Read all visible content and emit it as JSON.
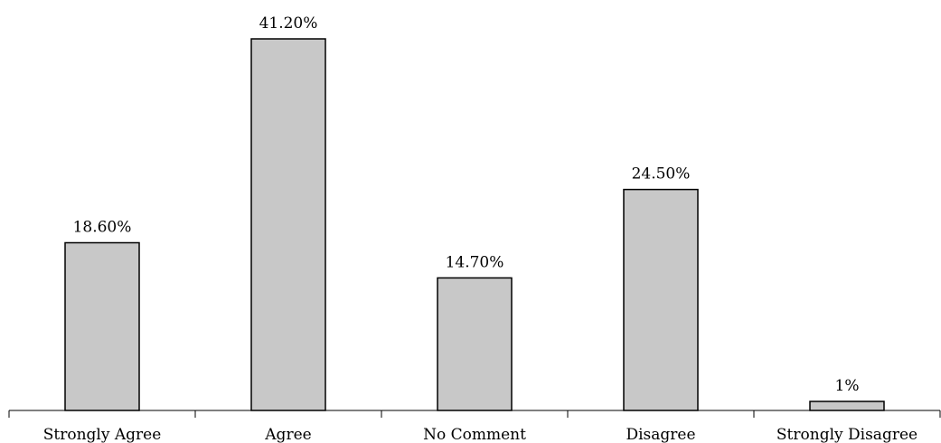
{
  "chart_data": {
    "type": "bar",
    "categories": [
      "Strongly Agree",
      "Agree",
      "No Comment",
      "Disagree",
      "Strongly Disagree"
    ],
    "values": [
      18.6,
      41.2,
      14.7,
      24.5,
      1
    ],
    "data_labels": [
      "18.60%",
      "41.20%",
      "14.70%",
      "24.50%",
      "1%"
    ],
    "ylim": [
      0,
      41.2
    ],
    "grid": false,
    "legend": "none",
    "title": "",
    "xlabel": "",
    "ylabel": "",
    "bar_color": "#c8c8c8",
    "bar_border_color": "#000000"
  }
}
